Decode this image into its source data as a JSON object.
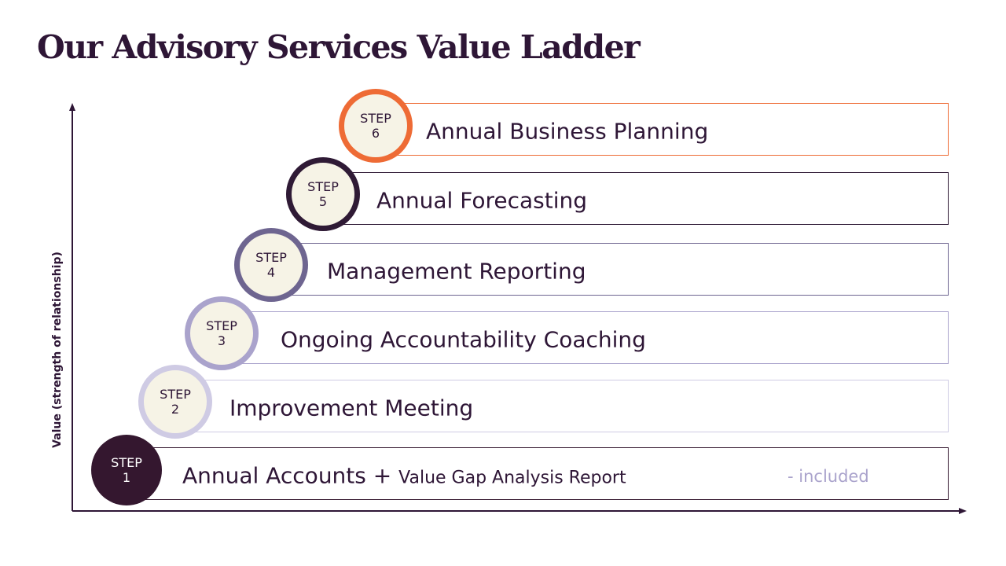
{
  "title": "Our Advisory Services Value Ladder",
  "y_axis_label": "Value (strength of relationship)",
  "step_word": "STEP",
  "steps": [
    {
      "num": "1",
      "label": "Annual Accounts +",
      "label_suffix": "Value Gap Analysis Report",
      "note": "- included",
      "color": "#34172f"
    },
    {
      "num": "2",
      "label": "Improvement Meeting",
      "color": "#cfcbe4"
    },
    {
      "num": "3",
      "label": "Ongoing Accountability Coaching",
      "color": "#aaa3cc"
    },
    {
      "num": "4",
      "label": "Management Reporting",
      "color": "#6e6590"
    },
    {
      "num": "5",
      "label": "Annual Forecasting",
      "color": "#2f1a35"
    },
    {
      "num": "6",
      "label": "Annual Business Planning",
      "color": "#ee6b35"
    }
  ]
}
